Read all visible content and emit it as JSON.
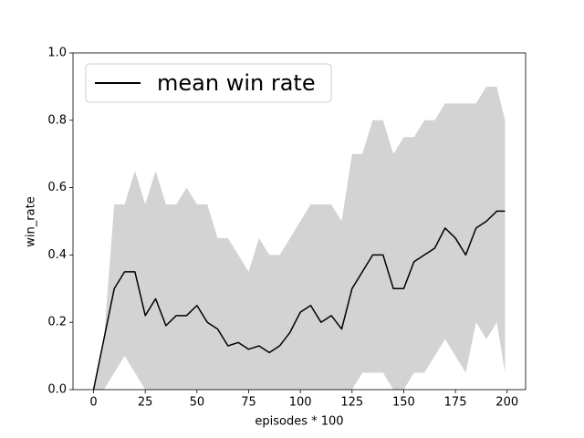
{
  "chart_data": {
    "type": "line",
    "x_label": "episodes * 100",
    "y_label": "win_rate",
    "xlim": [
      -9.95,
      208.95
    ],
    "ylim": [
      0,
      1
    ],
    "xticks": [
      0,
      25,
      50,
      75,
      100,
      125,
      150,
      175,
      200
    ],
    "yticks": [
      {
        "value": 0,
        "label": "0.0"
      },
      {
        "value": 0.2,
        "label": "0.2"
      },
      {
        "value": 0.4,
        "label": "0.4"
      },
      {
        "value": 0.6,
        "label": "0.6"
      },
      {
        "value": 0.8,
        "label": "0.8"
      },
      {
        "value": 1,
        "label": "1.0"
      }
    ],
    "legend": "upper left",
    "x": [
      0,
      5,
      10,
      15,
      20,
      25,
      30,
      35,
      40,
      45,
      50,
      55,
      60,
      65,
      70,
      75,
      80,
      85,
      90,
      95,
      100,
      105,
      110,
      115,
      120,
      125,
      130,
      135,
      140,
      145,
      150,
      155,
      160,
      165,
      170,
      175,
      180,
      185,
      190,
      195,
      199
    ],
    "series": [
      {
        "name": "mean win rate",
        "color": "#000000",
        "values": [
          0.0,
          0.15,
          0.3,
          0.35,
          0.35,
          0.22,
          0.27,
          0.19,
          0.22,
          0.22,
          0.25,
          0.2,
          0.18,
          0.13,
          0.14,
          0.12,
          0.13,
          0.11,
          0.13,
          0.17,
          0.23,
          0.25,
          0.2,
          0.22,
          0.18,
          0.3,
          0.35,
          0.4,
          0.4,
          0.3,
          0.3,
          0.38,
          0.4,
          0.42,
          0.48,
          0.45,
          0.4,
          0.48,
          0.5,
          0.53,
          0.53
        ]
      }
    ],
    "fill": {
      "color": "#d3d3d3",
      "upper": [
        0.0,
        0.15,
        0.55,
        0.55,
        0.65,
        0.55,
        0.65,
        0.55,
        0.55,
        0.6,
        0.55,
        0.55,
        0.45,
        0.45,
        0.4,
        0.35,
        0.45,
        0.4,
        0.4,
        0.45,
        0.5,
        0.55,
        0.55,
        0.55,
        0.5,
        0.7,
        0.7,
        0.8,
        0.8,
        0.7,
        0.75,
        0.75,
        0.8,
        0.8,
        0.85,
        0.85,
        0.85,
        0.85,
        0.9,
        0.9,
        0.8
      ],
      "lower": [
        0.0,
        0.0,
        0.05,
        0.1,
        0.05,
        0.0,
        0.0,
        0.0,
        0.0,
        0.0,
        0.0,
        0.0,
        0.0,
        0.0,
        0.0,
        0.0,
        0.0,
        0.0,
        0.0,
        0.0,
        0.0,
        0.0,
        0.0,
        0.0,
        0.0,
        0.0,
        0.05,
        0.05,
        0.05,
        0.0,
        0.0,
        0.05,
        0.05,
        0.1,
        0.15,
        0.1,
        0.05,
        0.2,
        0.15,
        0.2,
        0.05
      ]
    }
  }
}
